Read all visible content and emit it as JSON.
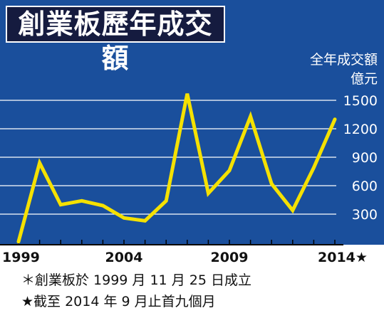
{
  "title": "創業板歷年成交額",
  "chart_data": {
    "type": "line",
    "title": "創業板歷年成交額",
    "ylabel": [
      "全年成交額",
      "億元"
    ],
    "xlabel": "",
    "x": [
      1999,
      2000,
      2001,
      2002,
      2003,
      2004,
      2005,
      2006,
      2007,
      2008,
      2009,
      2010,
      2011,
      2012,
      2013,
      2014
    ],
    "values": [
      10,
      840,
      400,
      440,
      390,
      260,
      230,
      440,
      1570,
      520,
      760,
      1330,
      620,
      340,
      790,
      1300
    ],
    "xticks": [
      {
        "value": 1999,
        "label": "1999"
      },
      {
        "value": 2004,
        "label": "2004"
      },
      {
        "value": 2009,
        "label": "2009"
      },
      {
        "value": 2014,
        "label": "2014★"
      }
    ],
    "yticks": [
      300,
      600,
      900,
      1200,
      1500
    ],
    "ylim": [
      0,
      1800
    ],
    "grid": true,
    "colors": {
      "background": "#1a4f9c",
      "line": "#f5e100",
      "grid": "#ffffff",
      "title_box": "#151b3f"
    }
  },
  "notes": [
    "＊創業板於 1999 月 11 月 25 日成立",
    "★截至 2014 年 9 月止首九個月"
  ]
}
